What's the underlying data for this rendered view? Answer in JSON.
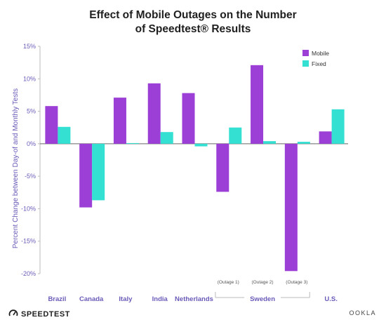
{
  "chart_data": {
    "type": "bar",
    "title_line1": "Effect of Mobile Outages on the Number",
    "title_line2": "of Speedtest® Results",
    "ylabel": "Percent Change between Day-of and Monthly Tests",
    "ylim": [
      -20,
      15
    ],
    "yticks": [
      -20,
      -15,
      -10,
      -5,
      0,
      5,
      10,
      15
    ],
    "ytick_labels": [
      "-20%",
      "-15%",
      "-10%",
      "-5%",
      "0%",
      "5%",
      "10%",
      "15%"
    ],
    "categories": [
      "Brazil",
      "Canada",
      "Italy",
      "India",
      "Netherlands",
      "Sweden (Outage 1)",
      "Sweden (Outage 2)",
      "Sweden (Outage 3)",
      "U.S."
    ],
    "category_labels": [
      "Brazil",
      "Canada",
      "Italy",
      "India",
      "Netherlands",
      "",
      "",
      "",
      "U.S."
    ],
    "sub_labels": [
      "",
      "",
      "",
      "",
      "",
      "(Outage 1)",
      "(Outage 2)",
      "(Outage 3)",
      ""
    ],
    "group_label": "Sweden",
    "series": [
      {
        "name": "Mobile",
        "color": "#9b3fd6",
        "values": [
          5.8,
          -9.8,
          7.1,
          9.3,
          7.8,
          -7.4,
          12.1,
          -19.6,
          1.9
        ]
      },
      {
        "name": "Fixed",
        "color": "#33e0d2",
        "values": [
          2.6,
          -8.7,
          0.1,
          1.8,
          -0.4,
          2.5,
          0.4,
          0.3,
          5.3
        ]
      }
    ],
    "legend_position": "top-right",
    "grid": false
  },
  "branding": {
    "left": "SPEEDTEST",
    "left_mark": "·",
    "right": "OOKLA"
  }
}
